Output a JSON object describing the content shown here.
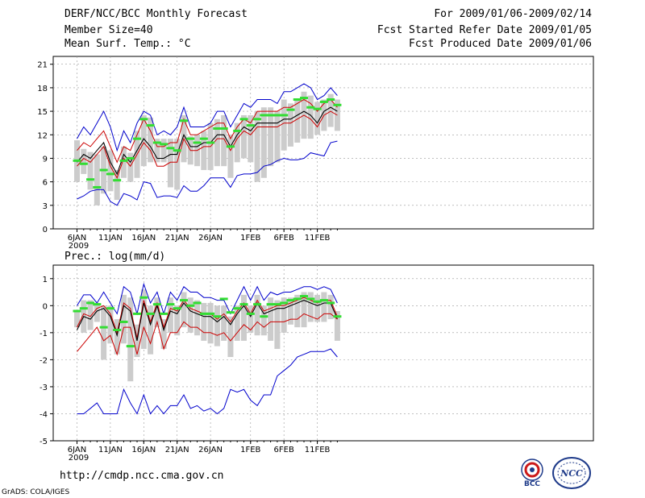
{
  "header": {
    "title": "DERF/NCC/BCC Monthly Forecast",
    "member": "Member Size=40",
    "variable": "Mean Surf. Temp.: °C",
    "period": "For 2009/01/06-2009/02/14",
    "started": "Fcst Started Refer Date 2009/01/05",
    "produced": "Fcst Produced Date 2009/01/06"
  },
  "footer": {
    "url": "http://cmdp.ncc.cma.gov.cn",
    "credit": "GrADS: COLA/IGES",
    "logo_left": "BCC",
    "logo_right": "NCC"
  },
  "colors": {
    "max": "#0000cc",
    "min": "#0000cc",
    "upper": "#cc0000",
    "median": "#000000",
    "box": "#cccccc",
    "obs": "#33dd33"
  },
  "chart_data": [
    {
      "type": "line",
      "title": "Mean Surf. Temp.: °C",
      "xlabel": "",
      "ylabel": "°C",
      "ylim": [
        0,
        22
      ],
      "yticks": [
        0,
        3,
        6,
        9,
        12,
        15,
        18,
        21
      ],
      "xticks": [
        {
          "day": 0,
          "label": "6JAN",
          "sub": "2009"
        },
        {
          "day": 5,
          "label": "11JAN"
        },
        {
          "day": 10,
          "label": "16JAN"
        },
        {
          "day": 15,
          "label": "21JAN"
        },
        {
          "day": 20,
          "label": "26JAN"
        },
        {
          "day": 26,
          "label": "1FEB"
        },
        {
          "day": 31,
          "label": "6FEB"
        },
        {
          "day": 36,
          "label": "11FEB"
        }
      ],
      "days": 40,
      "series": [
        {
          "name": "max",
          "role": "max",
          "values": [
            11.5,
            13,
            12,
            13.5,
            15,
            13,
            10,
            12.5,
            11,
            13.5,
            15,
            14.5,
            12,
            12.5,
            12,
            13,
            15.5,
            13,
            13,
            13,
            13.5,
            15,
            15,
            13,
            14.5,
            16,
            15.5,
            16.5,
            16.5,
            16.5,
            16,
            17.5,
            17.5,
            18,
            18.5,
            18,
            16.5,
            17,
            18,
            17
          ]
        },
        {
          "name": "upper",
          "role": "upper",
          "values": [
            10,
            11,
            10.5,
            11.5,
            12.5,
            10.5,
            8.5,
            10.5,
            10,
            12,
            14,
            12.5,
            10.5,
            10.5,
            11,
            11,
            14,
            12,
            12,
            12.5,
            13,
            13.5,
            13.5,
            11.5,
            13,
            14,
            13.5,
            15,
            15,
            15,
            15,
            15.5,
            15.5,
            16,
            16.5,
            16,
            15,
            16,
            16.5,
            15.5
          ]
        },
        {
          "name": "median",
          "role": "median",
          "values": [
            8.5,
            9.5,
            9,
            10,
            11,
            8.5,
            7,
            9.5,
            8.5,
            10,
            11.5,
            10.5,
            9,
            9,
            9.5,
            9.5,
            12,
            10.5,
            10.5,
            11,
            11,
            12,
            12,
            10.5,
            12,
            13,
            12.5,
            13.5,
            13.5,
            13.5,
            13.5,
            14,
            14,
            14.5,
            15,
            14.5,
            13.5,
            15,
            15.5,
            15
          ]
        },
        {
          "name": "lower",
          "role": "lower",
          "values": [
            8,
            9,
            8.5,
            9.5,
            10.5,
            8,
            6.5,
            9,
            8,
            9.5,
            11,
            10,
            8,
            8,
            8.5,
            8.5,
            11.5,
            10,
            10,
            10.5,
            10.5,
            11.5,
            11.5,
            10,
            11.5,
            12.5,
            12,
            13,
            13,
            13,
            13,
            13.5,
            13.5,
            14,
            14.5,
            14,
            13,
            14.5,
            15,
            14.5
          ]
        },
        {
          "name": "min",
          "role": "min",
          "values": [
            3.8,
            4.2,
            4.8,
            5,
            5,
            3.5,
            3,
            4.5,
            4.2,
            3.7,
            6,
            5.8,
            4,
            4.2,
            4.2,
            4,
            5.5,
            4.8,
            4.8,
            5.5,
            6.5,
            6.5,
            6.5,
            5.3,
            6.8,
            7,
            7,
            7.2,
            8,
            8.2,
            8.7,
            9,
            8.8,
            8.8,
            9,
            9.7,
            9.5,
            9.3,
            11,
            11.2
          ]
        },
        {
          "name": "obs",
          "role": "obs",
          "values": [
            8.7,
            8.3,
            6.3,
            5.3,
            7.5,
            7,
            6.2,
            8.7,
            9,
            11.5,
            14,
            13.2,
            11,
            10.8,
            10.3,
            10,
            13.8,
            11.5,
            11,
            11.5,
            11,
            12.8,
            12.8,
            10.5,
            12.5,
            14,
            13.2,
            14,
            14.5,
            14.5,
            14.5,
            14.5,
            15.2,
            16.5,
            16.7,
            15.5,
            15.3,
            16.2,
            16.5,
            15.8
          ]
        }
      ],
      "boxes": {
        "hi": [
          11.3,
          10.2,
          9.8,
          9.5,
          10.5,
          10,
          7.5,
          10.5,
          9.7,
          12.5,
          14.5,
          14.2,
          11.5,
          11.5,
          11.5,
          11.5,
          14.5,
          11.8,
          12,
          12.5,
          13.5,
          14,
          14.5,
          12,
          13.5,
          14.5,
          14.5,
          15,
          15.5,
          15.5,
          15,
          16.5,
          16,
          16.5,
          17.5,
          17,
          16.2,
          16.5,
          17.2,
          16.5
        ],
        "lo": [
          6,
          7,
          5,
          3,
          4.5,
          4.8,
          3.7,
          6.5,
          6,
          6.5,
          8,
          8.5,
          8.5,
          8.5,
          5.3,
          5,
          8.5,
          8.2,
          8,
          7.5,
          7.5,
          8,
          8,
          6.5,
          8.5,
          9,
          8.5,
          6,
          6.5,
          8,
          8.5,
          10,
          10.5,
          11,
          11.5,
          11.5,
          12,
          12.5,
          13,
          12.5
        ]
      }
    },
    {
      "type": "line",
      "title": "Prec.: log(mm/d)",
      "xlabel": "",
      "ylabel": "log(mm/d)",
      "ylim": [
        -5,
        1.5
      ],
      "yticks": [
        -5,
        -4,
        -3,
        -2,
        -1,
        0,
        1
      ],
      "xticks": [
        {
          "day": 0,
          "label": "6JAN",
          "sub": "2009"
        },
        {
          "day": 5,
          "label": "11JAN"
        },
        {
          "day": 10,
          "label": "16JAN"
        },
        {
          "day": 15,
          "label": "21JAN"
        },
        {
          "day": 20,
          "label": "26JAN"
        },
        {
          "day": 26,
          "label": "1FEB"
        },
        {
          "day": 31,
          "label": "6FEB"
        },
        {
          "day": 36,
          "label": "11FEB"
        }
      ],
      "days": 40,
      "series": [
        {
          "name": "max",
          "role": "max",
          "values": [
            0,
            0.4,
            0.4,
            0.1,
            0.5,
            0.1,
            -0.3,
            0.7,
            0.5,
            -0.3,
            0.8,
            0.1,
            0.5,
            -0.3,
            0.5,
            0.2,
            0.7,
            0.5,
            0.5,
            0.3,
            0.3,
            0.2,
            0.2,
            -0.3,
            0.2,
            0.7,
            0.2,
            0.7,
            0.2,
            0.5,
            0.4,
            0.5,
            0.5,
            0.6,
            0.7,
            0.7,
            0.6,
            0.7,
            0.6,
            0.1
          ]
        },
        {
          "name": "upper",
          "role": "upper",
          "values": [
            -0.8,
            -0.3,
            -0.4,
            -0.1,
            0,
            -0.3,
            -1,
            0.1,
            -0.1,
            -1.2,
            0.2,
            -0.6,
            0.1,
            -0.8,
            -0.1,
            -0.2,
            0.2,
            -0.1,
            -0.2,
            -0.3,
            -0.3,
            -0.5,
            -0.3,
            -0.6,
            -0.2,
            0.1,
            -0.3,
            0.2,
            -0.2,
            -0.1,
            0,
            0,
            0.1,
            0.2,
            0.3,
            0.2,
            0.1,
            0.2,
            0.2,
            -0.4
          ]
        },
        {
          "name": "median",
          "role": "median",
          "values": [
            -0.9,
            -0.4,
            -0.5,
            -0.2,
            -0.1,
            -0.4,
            -1.1,
            0,
            -0.2,
            -1.3,
            0.1,
            -0.7,
            0,
            -0.9,
            -0.2,
            -0.3,
            0.1,
            -0.2,
            -0.3,
            -0.4,
            -0.4,
            -0.6,
            -0.4,
            -0.7,
            -0.3,
            0,
            -0.4,
            0.1,
            -0.3,
            -0.2,
            -0.1,
            -0.1,
            0,
            0.1,
            0.2,
            0.1,
            0,
            0.1,
            0.1,
            -0.5
          ]
        },
        {
          "name": "lower",
          "role": "lower",
          "values": [
            -1.7,
            -1.4,
            -1.1,
            -0.8,
            -1.3,
            -1.1,
            -1.8,
            -0.8,
            -0.8,
            -1.8,
            -0.8,
            -1.4,
            -0.6,
            -1.6,
            -1,
            -1,
            -0.6,
            -0.8,
            -0.8,
            -1,
            -1,
            -1.1,
            -1,
            -1.3,
            -1,
            -0.7,
            -0.9,
            -0.6,
            -0.8,
            -0.6,
            -0.6,
            -0.6,
            -0.5,
            -0.5,
            -0.3,
            -0.4,
            -0.5,
            -0.3,
            -0.3,
            -0.5
          ]
        },
        {
          "name": "min",
          "role": "min",
          "values": [
            -4,
            -4,
            -3.8,
            -3.6,
            -4,
            -4,
            -4,
            -3.1,
            -3.6,
            -4,
            -3.3,
            -4,
            -3.7,
            -4,
            -3.7,
            -3.7,
            -3.3,
            -3.8,
            -3.7,
            -3.9,
            -3.8,
            -4,
            -3.8,
            -3.1,
            -3.2,
            -3.1,
            -3.5,
            -3.7,
            -3.3,
            -3.3,
            -2.6,
            -2.4,
            -2.2,
            -1.9,
            -1.8,
            -1.7,
            -1.7,
            -1.7,
            -1.6,
            -1.9
          ]
        },
        {
          "name": "obs",
          "role": "obs",
          "values": [
            -0.2,
            -0.1,
            0.1,
            0.05,
            -0.8,
            -0.1,
            -0.9,
            -0.6,
            -1.5,
            -0.3,
            0.3,
            -0.3,
            0.05,
            -0.3,
            0.05,
            -0.1,
            0.2,
            0,
            0.1,
            -0.3,
            -0.3,
            -0.4,
            0.25,
            -0.25,
            -0.1,
            0.05,
            -0.3,
            0.05,
            -0.4,
            0.05,
            0.05,
            0.1,
            0.2,
            0.25,
            0.35,
            0.25,
            0.15,
            0.2,
            0.1,
            -0.4
          ]
        }
      ],
      "boxes": {
        "hi": [
          -0.2,
          0.2,
          0.2,
          0.1,
          0,
          0,
          -0.5,
          0.4,
          0.3,
          -0.7,
          0.6,
          0,
          0.3,
          -0.5,
          0.3,
          0,
          0.5,
          0.3,
          0.2,
          0.1,
          0.1,
          0,
          0,
          -0.4,
          0,
          0.4,
          0,
          0.4,
          0,
          0.3,
          0.2,
          0.3,
          0.3,
          0.4,
          0.5,
          0.5,
          0.4,
          0.5,
          0.4,
          -0.2
        ],
        "lo": [
          -0.8,
          -1,
          -0.9,
          -0.6,
          -2,
          -1.4,
          -1.8,
          -1.4,
          -2.8,
          -1.9,
          -1.6,
          -1.8,
          -0.8,
          -1.6,
          -1,
          -1.1,
          -0.8,
          -1,
          -1.1,
          -1.3,
          -1.4,
          -1.5,
          -1.3,
          -1.9,
          -1.3,
          -1.3,
          -1,
          -1.1,
          -1.1,
          -1.3,
          -1.6,
          -1,
          -0.7,
          -0.8,
          -0.8,
          -0.6,
          -0.6,
          -0.6,
          -0.5,
          -1.3
        ]
      }
    }
  ]
}
